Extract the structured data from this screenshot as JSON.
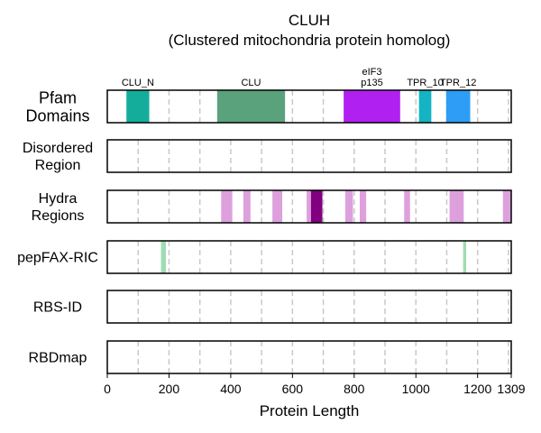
{
  "chart_data": {
    "type": "bar",
    "title": "CLUH",
    "subtitle": "(Clustered mitochondria protein homolog)",
    "xlabel": "Protein Length",
    "xlim": [
      0,
      1309
    ],
    "xticks": [
      0,
      200,
      400,
      600,
      800,
      1000,
      1200,
      1309
    ],
    "xtick_labels": [
      "0",
      "200",
      "400",
      "600",
      "800",
      "1000",
      "1200",
      "1309"
    ],
    "grid": "vertical dashed every 100",
    "tracks": [
      {
        "label": [
          "Pfam",
          "Domains"
        ],
        "segments": [
          {
            "start": 62,
            "end": 136,
            "color": "#14ad9c",
            "label": [
              "CLU_N"
            ]
          },
          {
            "start": 356,
            "end": 576,
            "color": "#5aa27c",
            "label": [
              "CLU"
            ]
          },
          {
            "start": 766,
            "end": 949,
            "color": "#b020f0",
            "label": [
              "eIF3",
              "p135"
            ]
          },
          {
            "start": 1010,
            "end": 1050,
            "color": "#14b4c4",
            "label": [
              "TPR_10"
            ]
          },
          {
            "start": 1098,
            "end": 1176,
            "color": "#2d9df5",
            "label": [
              "TPR_12"
            ]
          }
        ]
      },
      {
        "label": [
          "Disordered",
          "Region"
        ],
        "segments": []
      },
      {
        "label": [
          "Hydra",
          "Regions"
        ],
        "segments": [
          {
            "start": 369,
            "end": 405,
            "color": "#dda0dd"
          },
          {
            "start": 441,
            "end": 464,
            "color": "#dda0dd"
          },
          {
            "start": 535,
            "end": 567,
            "color": "#dda0dd"
          },
          {
            "start": 646,
            "end": 660,
            "color": "#dda0dd"
          },
          {
            "start": 660,
            "end": 697,
            "color": "#800080"
          },
          {
            "start": 771,
            "end": 796,
            "color": "#dda0dd"
          },
          {
            "start": 818,
            "end": 839,
            "color": "#dda0dd"
          },
          {
            "start": 962,
            "end": 981,
            "color": "#dda0dd"
          },
          {
            "start": 1109,
            "end": 1155,
            "color": "#dda0dd"
          },
          {
            "start": 1282,
            "end": 1309,
            "color": "#dda0dd"
          }
        ]
      },
      {
        "label": [
          "pepFAX-RIC"
        ],
        "segments": [
          {
            "start": 174,
            "end": 190,
            "color": "#a0dcb4"
          },
          {
            "start": 1153,
            "end": 1163,
            "color": "#a0dcb4"
          }
        ]
      },
      {
        "label": [
          "RBS-ID"
        ],
        "segments": []
      },
      {
        "label": [
          "RBDmap"
        ],
        "segments": []
      }
    ]
  }
}
